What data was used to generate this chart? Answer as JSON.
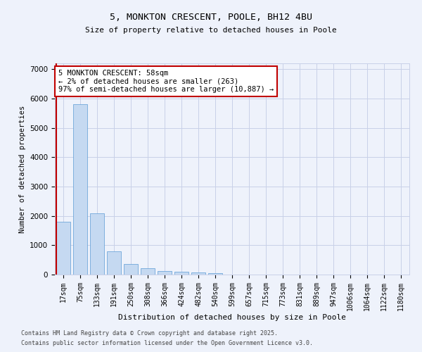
{
  "title1": "5, MONKTON CRESCENT, POOLE, BH12 4BU",
  "title2": "Size of property relative to detached houses in Poole",
  "xlabel": "Distribution of detached houses by size in Poole",
  "ylabel": "Number of detached properties",
  "categories": [
    "17sqm",
    "75sqm",
    "133sqm",
    "191sqm",
    "250sqm",
    "308sqm",
    "366sqm",
    "424sqm",
    "482sqm",
    "540sqm",
    "599sqm",
    "657sqm",
    "715sqm",
    "773sqm",
    "831sqm",
    "889sqm",
    "947sqm",
    "1006sqm",
    "1064sqm",
    "1122sqm",
    "1180sqm"
  ],
  "values": [
    1800,
    5800,
    2100,
    800,
    360,
    210,
    130,
    100,
    80,
    60,
    10,
    5,
    3,
    2,
    1,
    1,
    0,
    0,
    0,
    0,
    0
  ],
  "bar_color": "#c5d9f1",
  "bar_edge_color": "#5b9bd5",
  "highlight_line_color": "#c00000",
  "annotation_text": "5 MONKTON CRESCENT: 58sqm\n← 2% of detached houses are smaller (263)\n97% of semi-detached houses are larger (10,887) →",
  "annotation_box_color": "#c00000",
  "background_color": "#eef2fb",
  "grid_color": "#c8d0e8",
  "ylim": [
    0,
    7200
  ],
  "footer1": "Contains HM Land Registry data © Crown copyright and database right 2025.",
  "footer2": "Contains public sector information licensed under the Open Government Licence v3.0."
}
